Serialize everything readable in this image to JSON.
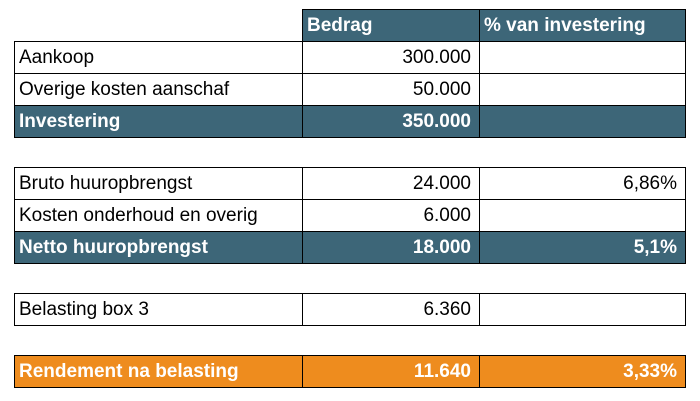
{
  "colors": {
    "header_teal": "#3d6678",
    "result_orange": "#ee8c1e"
  },
  "header": {
    "col_label": "",
    "col_amount": "Bedrag",
    "col_pct": "% van investering"
  },
  "investment": {
    "rows": [
      {
        "label": "Aankoop",
        "amount": "300.000",
        "pct": ""
      },
      {
        "label": "Overige kosten aanschaf",
        "amount": "50.000",
        "pct": ""
      }
    ],
    "total": {
      "label": "Investering",
      "amount": "350.000",
      "pct": ""
    }
  },
  "rental": {
    "rows": [
      {
        "label": "Bruto huuropbrengst",
        "amount": "24.000",
        "pct": "6,86%"
      },
      {
        "label": "Kosten onderhoud en overig",
        "amount": "6.000",
        "pct": ""
      }
    ],
    "total": {
      "label": "Netto huuropbrengst",
      "amount": "18.000",
      "pct": "5,1%"
    }
  },
  "tax": {
    "rows": [
      {
        "label": "Belasting box 3",
        "amount": "6.360",
        "pct": ""
      }
    ]
  },
  "result": {
    "total": {
      "label": "Rendement na belasting",
      "amount": "11.640",
      "pct": "3,33%"
    }
  }
}
